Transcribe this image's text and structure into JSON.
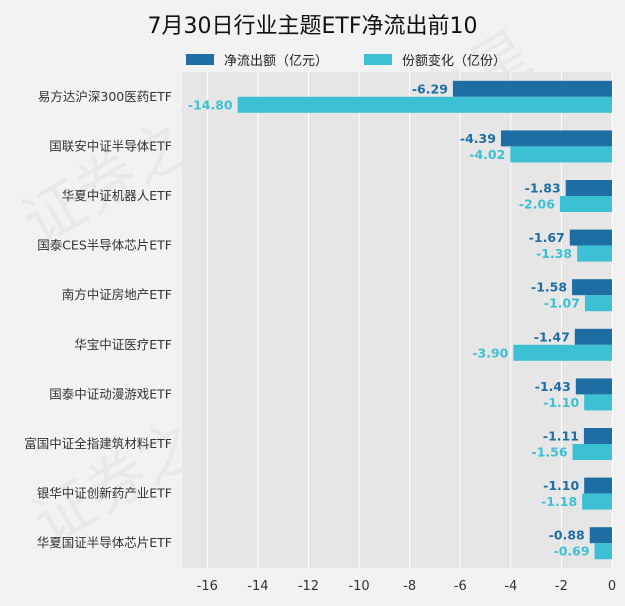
{
  "chart_data": {
    "type": "bar",
    "orientation": "horizontal",
    "title": "7月30日行业主题ETF净流出前10",
    "categories": [
      "易方达沪深300医药ETF",
      "国联安中证半导体ETF",
      "华夏中证机器人ETF",
      "国泰CES半导体芯片ETF",
      "南方中证房地产ETF",
      "华宝中证医疗ETF",
      "国泰中证动漫游戏ETF",
      "富国中证全指建筑材料ETF",
      "银华中证创新药产业ETF",
      "华夏国证半导体芯片ETF"
    ],
    "series": [
      {
        "name": "净流出额（亿元）",
        "color": "#1f6ea3",
        "values": [
          -6.29,
          -4.39,
          -1.83,
          -1.67,
          -1.58,
          -1.47,
          -1.43,
          -1.11,
          -1.1,
          -0.88
        ],
        "labels": [
          "-6.29",
          "-4.39",
          "-1.83",
          "-1.67",
          "-1.58",
          "-1.47",
          "-1.43",
          "-1.11",
          "-1.10",
          "-0.88"
        ]
      },
      {
        "name": "份额变化（亿份）",
        "color": "#3bc1d3",
        "values": [
          -14.8,
          -4.02,
          -2.06,
          -1.38,
          -1.07,
          -3.9,
          -1.1,
          -1.56,
          -1.18,
          -0.69
        ],
        "labels": [
          "-14.80",
          "-4.02",
          "-2.06",
          "-1.38",
          "-1.07",
          "-3.90",
          "-1.10",
          "-1.56",
          "-1.18",
          "-0.69"
        ]
      }
    ],
    "xlim": [
      -17,
      0
    ],
    "xticks": [
      -16,
      -14,
      -12,
      -10,
      -8,
      -6,
      -4,
      -2,
      0
    ],
    "xtick_labels": [
      "-16",
      "-14",
      "-12",
      "-10",
      "-8",
      "-6",
      "-4",
      "-2",
      "0"
    ],
    "grid": true,
    "legend_position": "top"
  }
}
